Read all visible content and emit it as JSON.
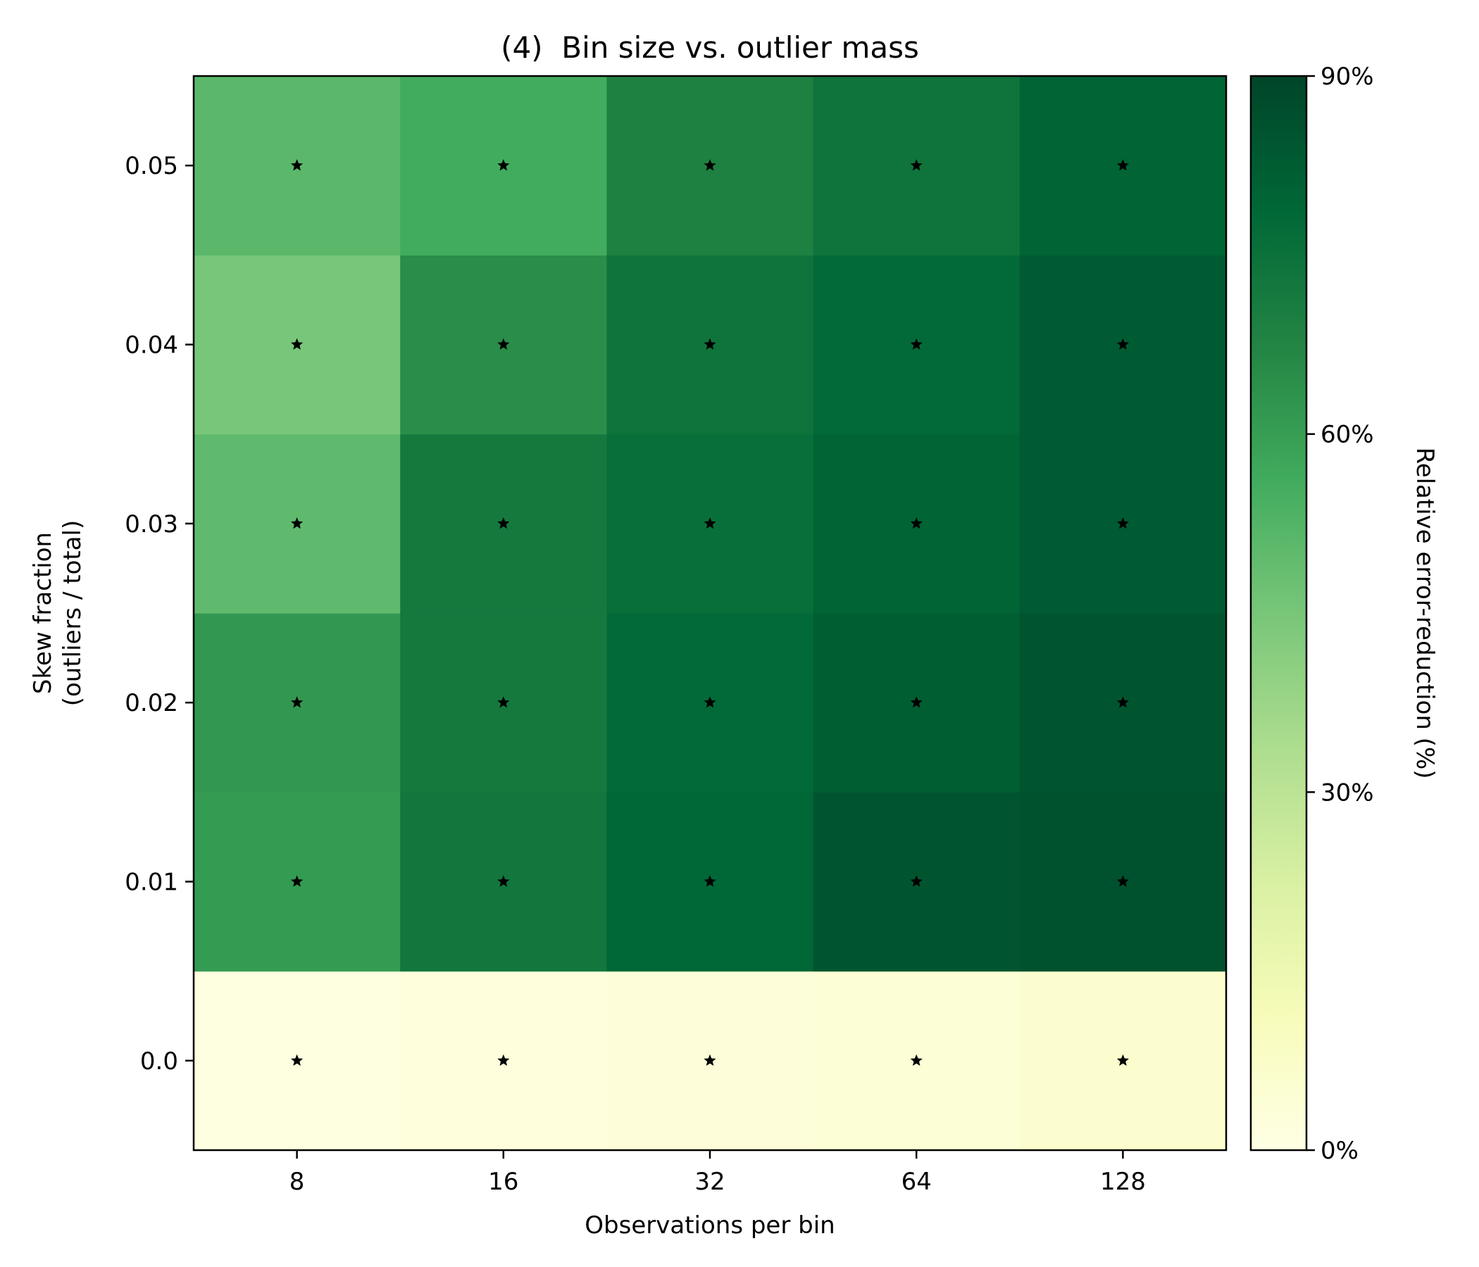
{
  "chart_data": {
    "type": "heatmap",
    "title": "(4)  Bin size vs. outlier mass",
    "xlabel": "Observations per bin",
    "ylabel_lines": [
      "Skew fraction",
      "(outliers / total)"
    ],
    "x_categories": [
      "8",
      "16",
      "32",
      "64",
      "128"
    ],
    "y_categories": [
      "0.0",
      "0.01",
      "0.02",
      "0.03",
      "0.04",
      "0.05"
    ],
    "values": [
      [
        1,
        2,
        3,
        4,
        6
      ],
      [
        61,
        73,
        79,
        85,
        86
      ],
      [
        62,
        72,
        78,
        82,
        85
      ],
      [
        50,
        72,
        76,
        80,
        83
      ],
      [
        45,
        65,
        74,
        78,
        83
      ],
      [
        51,
        56,
        69,
        74,
        80
      ]
    ],
    "marker": "star",
    "colorbar": {
      "label": "Relative error-reduction (%)",
      "ticks": [
        "0%",
        "30%",
        "60%",
        "90%"
      ],
      "tick_values": [
        0,
        30,
        60,
        90
      ],
      "range": [
        0,
        90
      ],
      "colormap": "YlGn",
      "colors": [
        "#ffffe5",
        "#f7fcb9",
        "#d9f0a3",
        "#addd8e",
        "#78c679",
        "#41ab5d",
        "#238443",
        "#006837",
        "#004529"
      ]
    },
    "grid": false
  }
}
